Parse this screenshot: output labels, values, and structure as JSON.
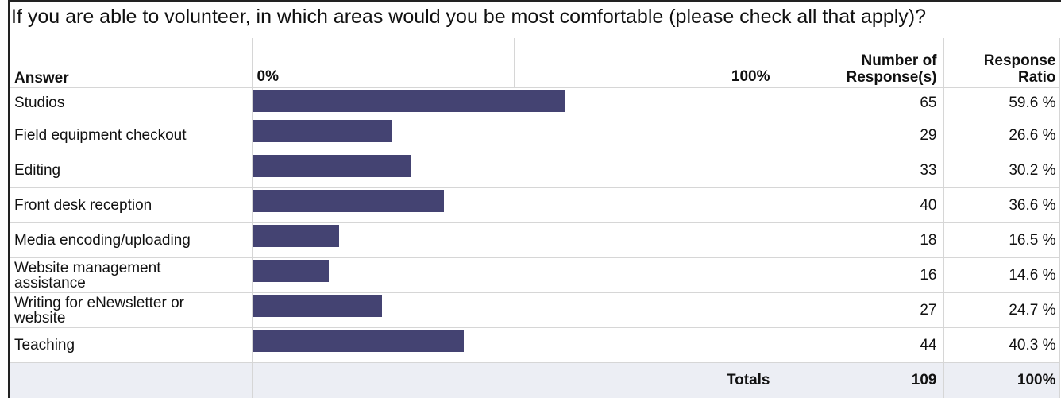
{
  "question": "If you are able to volunteer, in which areas would you be most comfortable (please check all that apply)?",
  "headers": {
    "answer": "Answer",
    "scale_min": "0%",
    "scale_max": "100%",
    "responses_line1": "Number of",
    "responses_line2": "Response(s)",
    "ratio_line1": "Response",
    "ratio_line2": "Ratio"
  },
  "chart_data": {
    "type": "bar",
    "orientation": "horizontal",
    "categories": [
      "Studios",
      "Field equipment checkout",
      "Editing",
      "Front desk reception",
      "Media encoding/uploading",
      "Website management assistance",
      "Writing for eNewsletter or website",
      "Teaching"
    ],
    "counts": [
      65,
      29,
      33,
      40,
      18,
      16,
      27,
      44
    ],
    "ratios": [
      59.6,
      26.6,
      30.2,
      36.6,
      16.5,
      14.6,
      24.7,
      40.3
    ],
    "ratio_labels": [
      "59.6 %",
      "26.6 %",
      "30.2 %",
      "36.6 %",
      "16.5 %",
      "14.6 %",
      "24.7 %",
      "40.3 %"
    ],
    "xlim": [
      0,
      100
    ],
    "bar_color": "#444372"
  },
  "totals": {
    "label": "Totals",
    "count": "109",
    "ratio": "100%"
  }
}
